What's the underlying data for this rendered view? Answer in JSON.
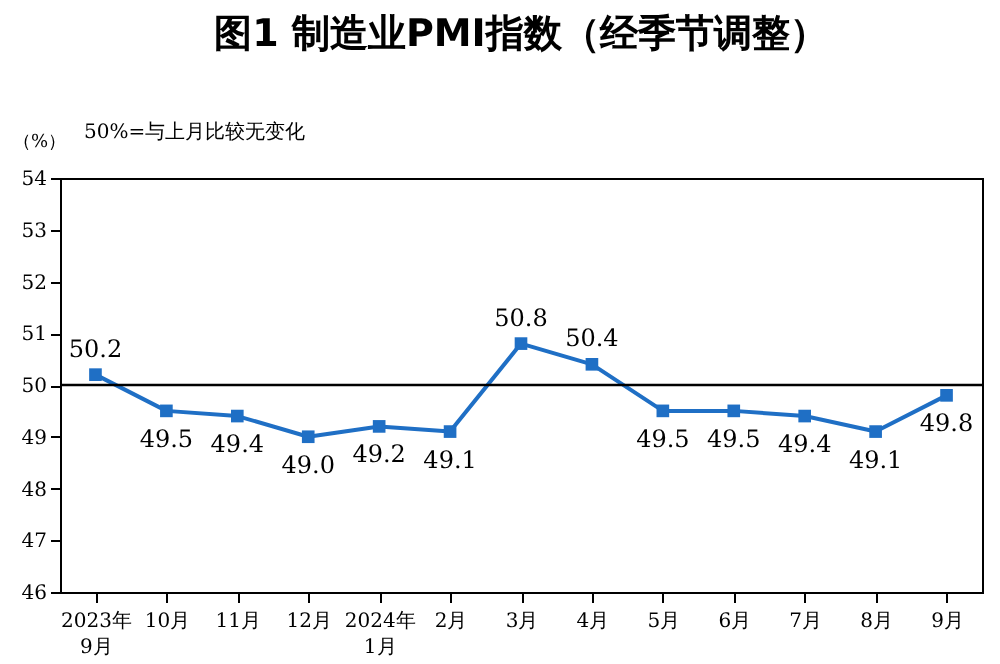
{
  "chart_data": {
    "type": "line",
    "title": "图1  制造业PMI指数（经季节调整）",
    "ylabel": "（%）",
    "annotations": [
      "50%=与上月比较无变化"
    ],
    "categories": [
      "2023年\n9月",
      "10月",
      "11月",
      "12月",
      "2024年\n1月",
      "2月",
      "3月",
      "4月",
      "5月",
      "6月",
      "7月",
      "8月",
      "9月"
    ],
    "series": [
      {
        "color": "#1f6fc5",
        "values": [
          50.2,
          49.5,
          49.4,
          49.0,
          49.2,
          49.1,
          50.8,
          50.4,
          49.5,
          49.5,
          49.4,
          49.1,
          49.8
        ]
      }
    ],
    "ylim": [
      46,
      54
    ],
    "yticks": [
      46,
      47,
      48,
      49,
      50,
      51,
      52,
      53,
      54
    ],
    "ref_lines": [
      {
        "axis": "y",
        "value": 50,
        "color": "#000000"
      }
    ],
    "value_labels": [
      "50.2",
      "49.5",
      "49.4",
      "49.0",
      "49.2",
      "49.1",
      "50.8",
      "50.4",
      "49.5",
      "49.5",
      "49.4",
      "49.1",
      "49.8"
    ],
    "marker": "square",
    "line_style": "solid",
    "grid": false
  }
}
